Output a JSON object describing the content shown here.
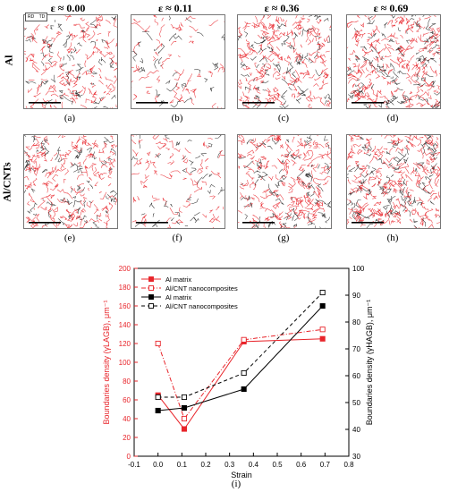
{
  "figure": {
    "strain_labels": [
      "ε ≈ 0.00",
      "ε ≈ 0.11",
      "ε ≈ 0.36",
      "ε ≈ 0.69"
    ],
    "row_labels": [
      "Al",
      "Al/CNTs"
    ],
    "panel_labels_top": [
      "(a)",
      "(b)",
      "(c)",
      "(d)"
    ],
    "panel_labels_bottom": [
      "(e)",
      "(f)",
      "(g)",
      "(h)"
    ],
    "chart_caption": "(i)",
    "axis_glyph": {
      "rd": "RD",
      "td": "TD"
    },
    "colors": {
      "lagb": "#e8242a",
      "hagb": "#222222",
      "map_bg": "#ffffff"
    }
  },
  "chart_data": {
    "type": "line",
    "xlabel": "Strain",
    "ylabel_left": "Boundaries density (γLAGB), μm⁻¹",
    "ylabel_right": "Boundaries density (γHAGB), μm⁻¹",
    "xlim": [
      -0.1,
      0.8
    ],
    "ylim_left": [
      0,
      200
    ],
    "ylim_right": [
      30,
      100
    ],
    "x_ticks": [
      "-0.1",
      "0.0",
      "0.1",
      "0.2",
      "0.3",
      "0.4",
      "0.5",
      "0.6",
      "0.7",
      "0.8"
    ],
    "y_ticks_left": [
      "0",
      "20",
      "40",
      "60",
      "80",
      "100",
      "120",
      "140",
      "160",
      "180",
      "200"
    ],
    "y_ticks_right": [
      "30",
      "40",
      "50",
      "60",
      "70",
      "80",
      "90",
      "100"
    ],
    "x": [
      0.0,
      0.11,
      0.36,
      0.69
    ],
    "series": [
      {
        "name": "Al matrix",
        "axis": "left",
        "color": "#e8242a",
        "dash": "solid",
        "marker": "filled-square",
        "values": [
          65,
          29,
          122,
          125
        ]
      },
      {
        "name": "Al/CNT nanocomposites",
        "axis": "left",
        "color": "#e8242a",
        "dash": "dashdot",
        "marker": "open-square",
        "values": [
          120,
          40,
          124,
          135
        ]
      },
      {
        "name": "Al matrix",
        "axis": "right",
        "color": "#000000",
        "dash": "solid",
        "marker": "filled-square",
        "values": [
          47,
          48,
          55,
          86
        ]
      },
      {
        "name": "Al/CNT nanocomposites",
        "axis": "right",
        "color": "#000000",
        "dash": "dashed",
        "marker": "open-square",
        "values": [
          52,
          52,
          61,
          91
        ]
      }
    ],
    "legend_position": "top-left",
    "grid": false
  }
}
